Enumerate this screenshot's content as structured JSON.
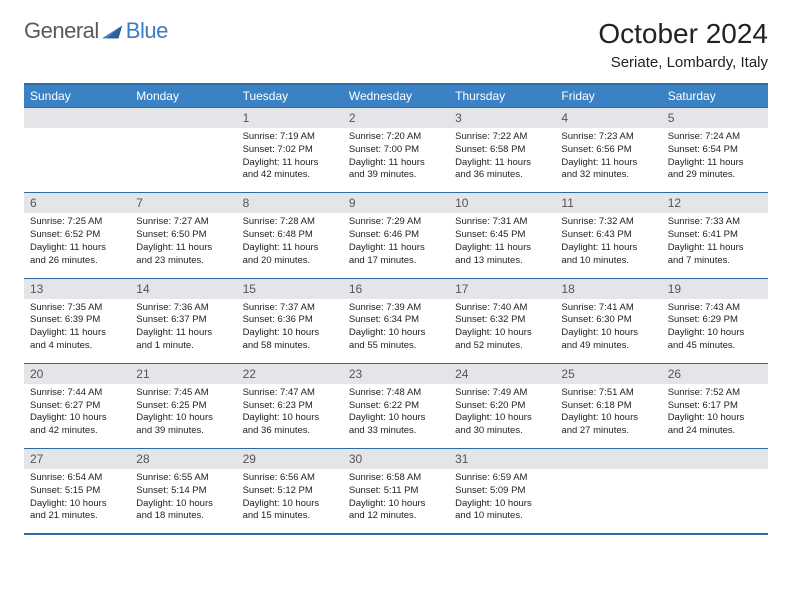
{
  "logo": {
    "text1": "General",
    "text2": "Blue"
  },
  "header": {
    "title": "October 2024",
    "location": "Seriate, Lombardy, Italy"
  },
  "colors": {
    "header_bg": "#3b82c4",
    "header_text": "#ffffff",
    "border": "#2e6da4",
    "daynum_bg": "#e3e5e8",
    "daynum_text": "#555555",
    "body_text": "#222222",
    "logo_gray": "#5a5a5a",
    "logo_blue": "#3b7bbf"
  },
  "weekdays": [
    "Sunday",
    "Monday",
    "Tuesday",
    "Wednesday",
    "Thursday",
    "Friday",
    "Saturday"
  ],
  "weeks": [
    [
      null,
      null,
      {
        "n": "1",
        "sunrise": "7:19 AM",
        "sunset": "7:02 PM",
        "daylight": "11 hours and 42 minutes."
      },
      {
        "n": "2",
        "sunrise": "7:20 AM",
        "sunset": "7:00 PM",
        "daylight": "11 hours and 39 minutes."
      },
      {
        "n": "3",
        "sunrise": "7:22 AM",
        "sunset": "6:58 PM",
        "daylight": "11 hours and 36 minutes."
      },
      {
        "n": "4",
        "sunrise": "7:23 AM",
        "sunset": "6:56 PM",
        "daylight": "11 hours and 32 minutes."
      },
      {
        "n": "5",
        "sunrise": "7:24 AM",
        "sunset": "6:54 PM",
        "daylight": "11 hours and 29 minutes."
      }
    ],
    [
      {
        "n": "6",
        "sunrise": "7:25 AM",
        "sunset": "6:52 PM",
        "daylight": "11 hours and 26 minutes."
      },
      {
        "n": "7",
        "sunrise": "7:27 AM",
        "sunset": "6:50 PM",
        "daylight": "11 hours and 23 minutes."
      },
      {
        "n": "8",
        "sunrise": "7:28 AM",
        "sunset": "6:48 PM",
        "daylight": "11 hours and 20 minutes."
      },
      {
        "n": "9",
        "sunrise": "7:29 AM",
        "sunset": "6:46 PM",
        "daylight": "11 hours and 17 minutes."
      },
      {
        "n": "10",
        "sunrise": "7:31 AM",
        "sunset": "6:45 PM",
        "daylight": "11 hours and 13 minutes."
      },
      {
        "n": "11",
        "sunrise": "7:32 AM",
        "sunset": "6:43 PM",
        "daylight": "11 hours and 10 minutes."
      },
      {
        "n": "12",
        "sunrise": "7:33 AM",
        "sunset": "6:41 PM",
        "daylight": "11 hours and 7 minutes."
      }
    ],
    [
      {
        "n": "13",
        "sunrise": "7:35 AM",
        "sunset": "6:39 PM",
        "daylight": "11 hours and 4 minutes."
      },
      {
        "n": "14",
        "sunrise": "7:36 AM",
        "sunset": "6:37 PM",
        "daylight": "11 hours and 1 minute."
      },
      {
        "n": "15",
        "sunrise": "7:37 AM",
        "sunset": "6:36 PM",
        "daylight": "10 hours and 58 minutes."
      },
      {
        "n": "16",
        "sunrise": "7:39 AM",
        "sunset": "6:34 PM",
        "daylight": "10 hours and 55 minutes."
      },
      {
        "n": "17",
        "sunrise": "7:40 AM",
        "sunset": "6:32 PM",
        "daylight": "10 hours and 52 minutes."
      },
      {
        "n": "18",
        "sunrise": "7:41 AM",
        "sunset": "6:30 PM",
        "daylight": "10 hours and 49 minutes."
      },
      {
        "n": "19",
        "sunrise": "7:43 AM",
        "sunset": "6:29 PM",
        "daylight": "10 hours and 45 minutes."
      }
    ],
    [
      {
        "n": "20",
        "sunrise": "7:44 AM",
        "sunset": "6:27 PM",
        "daylight": "10 hours and 42 minutes."
      },
      {
        "n": "21",
        "sunrise": "7:45 AM",
        "sunset": "6:25 PM",
        "daylight": "10 hours and 39 minutes."
      },
      {
        "n": "22",
        "sunrise": "7:47 AM",
        "sunset": "6:23 PM",
        "daylight": "10 hours and 36 minutes."
      },
      {
        "n": "23",
        "sunrise": "7:48 AM",
        "sunset": "6:22 PM",
        "daylight": "10 hours and 33 minutes."
      },
      {
        "n": "24",
        "sunrise": "7:49 AM",
        "sunset": "6:20 PM",
        "daylight": "10 hours and 30 minutes."
      },
      {
        "n": "25",
        "sunrise": "7:51 AM",
        "sunset": "6:18 PM",
        "daylight": "10 hours and 27 minutes."
      },
      {
        "n": "26",
        "sunrise": "7:52 AM",
        "sunset": "6:17 PM",
        "daylight": "10 hours and 24 minutes."
      }
    ],
    [
      {
        "n": "27",
        "sunrise": "6:54 AM",
        "sunset": "5:15 PM",
        "daylight": "10 hours and 21 minutes."
      },
      {
        "n": "28",
        "sunrise": "6:55 AM",
        "sunset": "5:14 PM",
        "daylight": "10 hours and 18 minutes."
      },
      {
        "n": "29",
        "sunrise": "6:56 AM",
        "sunset": "5:12 PM",
        "daylight": "10 hours and 15 minutes."
      },
      {
        "n": "30",
        "sunrise": "6:58 AM",
        "sunset": "5:11 PM",
        "daylight": "10 hours and 12 minutes."
      },
      {
        "n": "31",
        "sunrise": "6:59 AM",
        "sunset": "5:09 PM",
        "daylight": "10 hours and 10 minutes."
      },
      null,
      null
    ]
  ],
  "labels": {
    "sunrise": "Sunrise:",
    "sunset": "Sunset:",
    "daylight": "Daylight:"
  }
}
